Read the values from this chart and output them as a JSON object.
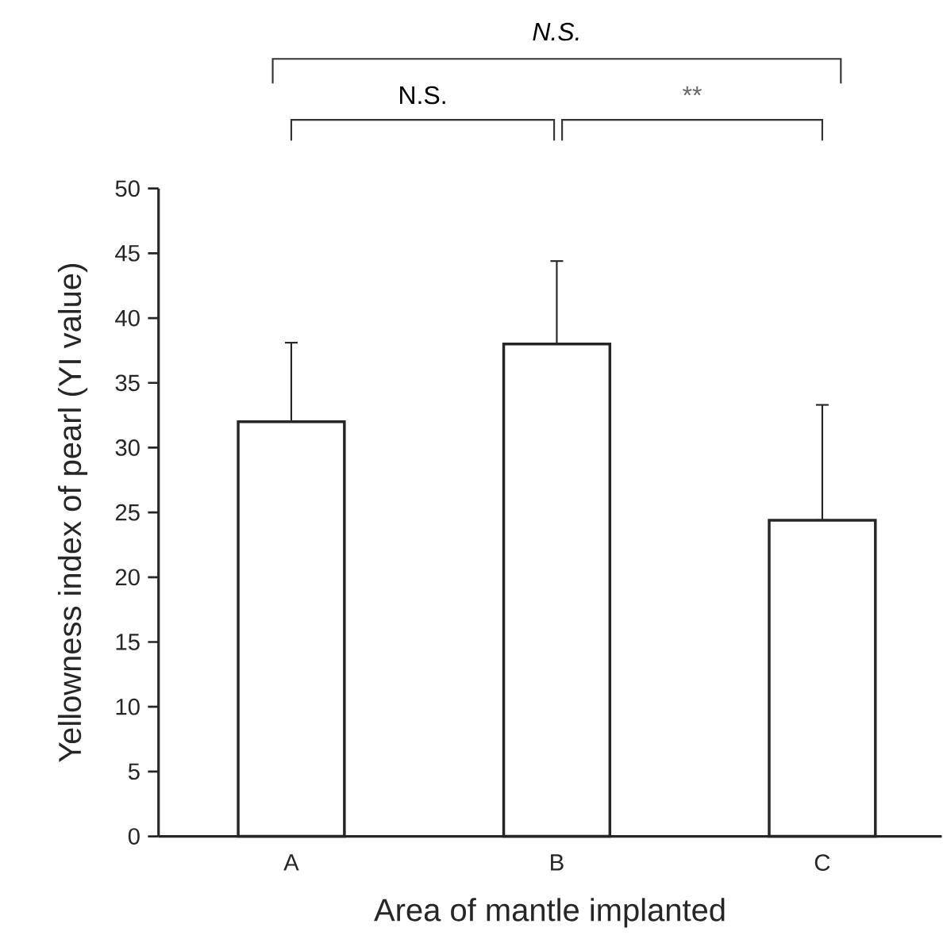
{
  "chart_data": {
    "type": "bar",
    "xlabel": "Area of mantle implanted",
    "ylabel": "Yellowness index of pearl (YI value)",
    "categories": [
      "A",
      "B",
      "C"
    ],
    "values": [
      32,
      38,
      24.4
    ],
    "errors": [
      [
        32,
        38.1
      ],
      [
        38,
        44.4
      ],
      [
        24.4,
        33.3
      ]
    ],
    "color": "#ffffff",
    "ylim": [
      0,
      50
    ],
    "yticks": [
      0,
      5,
      10,
      15,
      20,
      25,
      30,
      35,
      40,
      45,
      50
    ],
    "grid": false,
    "annotations": [
      "N.S.",
      "N.S.",
      "**"
    ]
  }
}
